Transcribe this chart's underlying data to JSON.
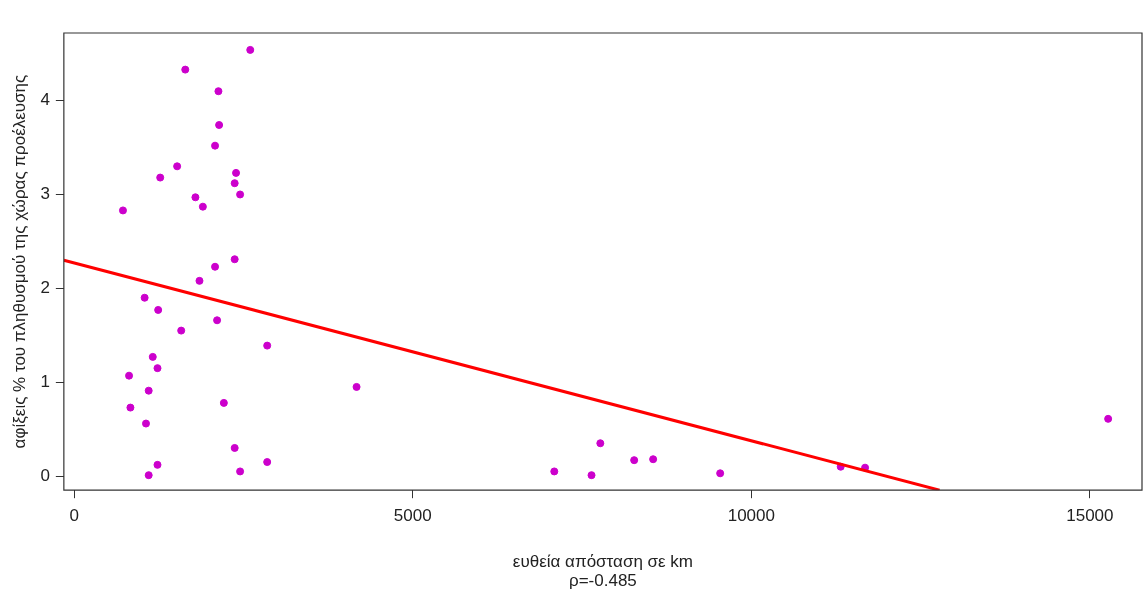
{
  "chart_data": {
    "type": "scatter",
    "xlabel": "ευθεία απόσταση σε km",
    "ylabel": "αφίξεις % του πληθυσμού της χώρας προέλευσης",
    "annotations": [
      "ρ=-0.485"
    ],
    "xlim": [
      -153,
      15770
    ],
    "ylim": [
      -0.15,
      4.72
    ],
    "xticks": [
      0,
      5000,
      10000,
      15000
    ],
    "yticks": [
      0,
      1,
      2,
      3,
      4
    ],
    "grid": false,
    "legend": false,
    "series": [
      {
        "color": "#cc00cc",
        "marker": "circle",
        "x": [
          720,
          810,
          830,
          1040,
          1060,
          1100,
          1100,
          1160,
          1230,
          1230,
          1240,
          1270,
          1520,
          1580,
          1640,
          1790,
          1850,
          1900,
          2080,
          2080,
          2110,
          2130,
          2140,
          2210,
          2370,
          2370,
          2370,
          2390,
          2450,
          2450,
          2600,
          2850,
          2850,
          4170,
          7090,
          7640,
          7770,
          8270,
          8550,
          9540,
          11320,
          11680,
          15270
        ],
        "values": [
          2.83,
          1.07,
          0.73,
          1.9,
          0.56,
          0.91,
          0.01,
          1.27,
          1.15,
          0.12,
          1.77,
          3.18,
          3.3,
          1.55,
          4.33,
          2.97,
          2.08,
          2.87,
          3.52,
          2.23,
          1.66,
          4.1,
          3.74,
          0.78,
          0.3,
          2.31,
          3.12,
          3.23,
          3.0,
          0.05,
          4.54,
          1.39,
          0.15,
          0.95,
          0.05,
          0.01,
          0.35,
          0.17,
          0.18,
          0.03,
          0.1,
          0.09,
          0.61
        ]
      },
      {
        "type": "line",
        "marker": "none",
        "color": "#ff0000",
        "x": [
          -153,
          12780
        ],
        "values": [
          2.3,
          -0.15
        ]
      }
    ]
  }
}
